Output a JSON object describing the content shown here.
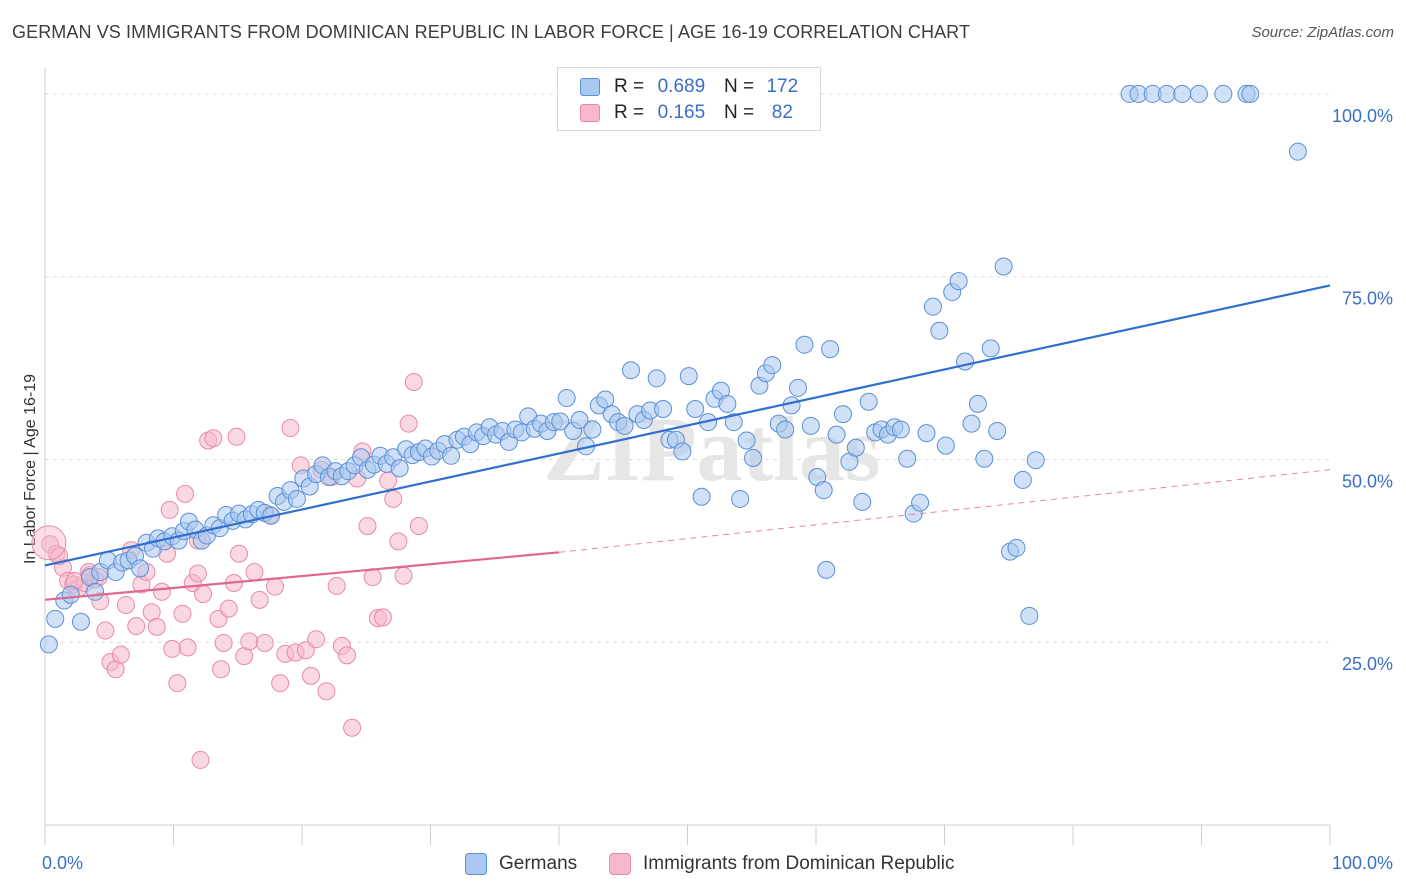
{
  "title": "GERMAN VS IMMIGRANTS FROM DOMINICAN REPUBLIC IN LABOR FORCE | AGE 16-19 CORRELATION CHART",
  "source": "Source: ZipAtlas.com",
  "watermark": "ZIPatlas",
  "colors": {
    "blue_fill": "#a9c8f0",
    "blue_stroke": "#5b8fd6",
    "blue_line": "#2f6fcf",
    "pink_fill": "#f5b8cb",
    "pink_stroke": "#e88aa6",
    "pink_line": "#e0678f",
    "tick_label": "#3a6fc4",
    "grid": "#dddddd"
  },
  "legend": {
    "rows": [
      {
        "r_label": "R =",
        "r_value": "0.689",
        "n_label": "N =",
        "n_value": "172",
        "color": "blue"
      },
      {
        "r_label": "R =",
        "r_value": "0.165",
        "n_label": "N =",
        "n_value": "82",
        "color": "pink"
      }
    ]
  },
  "bottom_legend": [
    "Germans",
    "Immigrants from Dominican Republic"
  ],
  "chart_data": {
    "type": "scatter",
    "title": "GERMAN VS IMMIGRANTS FROM DOMINICAN REPUBLIC IN LABOR FORCE | AGE 16-19 CORRELATION CHART",
    "xlabel": "",
    "ylabel": "In Labor Force | Age 16-19",
    "xlim": [
      0,
      100
    ],
    "ylim": [
      0,
      103
    ],
    "x_tick_labels": [
      "0.0%",
      "100.0%"
    ],
    "y_ticks": [
      25,
      50,
      75,
      100
    ],
    "y_tick_labels": [
      "25.0%",
      "50.0%",
      "75.0%",
      "100.0%"
    ],
    "grid": true,
    "legend_position": "top-center",
    "series": [
      {
        "name": "Germans",
        "color": "blue",
        "trendline": {
          "x": [
            0,
            100
          ],
          "y": [
            35.5,
            73.8
          ],
          "style": "solid"
        },
        "points": [
          [
            0.3,
            24.7
          ],
          [
            0.8,
            28.2
          ],
          [
            1.5,
            30.7
          ],
          [
            2,
            31.5
          ],
          [
            2.8,
            27.8
          ],
          [
            3.5,
            33.9
          ],
          [
            3.9,
            31.9
          ],
          [
            4.3,
            34.6
          ],
          [
            4.9,
            36.2
          ],
          [
            5.5,
            34.6
          ],
          [
            6,
            35.9
          ],
          [
            6.5,
            36.2
          ],
          [
            7,
            36.8
          ],
          [
            7.4,
            35.1
          ],
          [
            7.9,
            38.6
          ],
          [
            8.4,
            37.8
          ],
          [
            8.8,
            39.2
          ],
          [
            9.3,
            38.8
          ],
          [
            9.9,
            39.5
          ],
          [
            10.4,
            38.9
          ],
          [
            10.8,
            40.2
          ],
          [
            11.2,
            41.5
          ],
          [
            11.7,
            40.4
          ],
          [
            12.2,
            38.9
          ],
          [
            12.6,
            39.6
          ],
          [
            13.1,
            41
          ],
          [
            13.6,
            40.6
          ],
          [
            14.1,
            42.4
          ],
          [
            14.6,
            41.6
          ],
          [
            15.1,
            42.6
          ],
          [
            15.6,
            41.8
          ],
          [
            16.1,
            42.5
          ],
          [
            16.6,
            43.1
          ],
          [
            17.1,
            42.7
          ],
          [
            17.6,
            42.3
          ],
          [
            18.1,
            45
          ],
          [
            18.6,
            44.2
          ],
          [
            19.1,
            45.8
          ],
          [
            19.6,
            44.6
          ],
          [
            20.1,
            47.4
          ],
          [
            20.6,
            46.3
          ],
          [
            21.1,
            48
          ],
          [
            21.6,
            49.2
          ],
          [
            22.1,
            47.6
          ],
          [
            22.6,
            48.4
          ],
          [
            23.1,
            47.7
          ],
          [
            23.6,
            48.4
          ],
          [
            24.1,
            49.2
          ],
          [
            24.6,
            50.3
          ],
          [
            25.1,
            48.6
          ],
          [
            25.6,
            49.3
          ],
          [
            26.1,
            50.5
          ],
          [
            26.6,
            49.4
          ],
          [
            27.1,
            50.3
          ],
          [
            27.6,
            48.8
          ],
          [
            28.1,
            51.4
          ],
          [
            28.6,
            50.6
          ],
          [
            29.1,
            51
          ],
          [
            29.6,
            51.5
          ],
          [
            30.1,
            50.4
          ],
          [
            30.6,
            51.2
          ],
          [
            31.1,
            52.1
          ],
          [
            31.6,
            50.5
          ],
          [
            32.1,
            52.7
          ],
          [
            32.6,
            53.1
          ],
          [
            33.1,
            52.1
          ],
          [
            33.6,
            53.7
          ],
          [
            34.1,
            53.2
          ],
          [
            34.6,
            54.4
          ],
          [
            35.1,
            53.4
          ],
          [
            35.6,
            53.9
          ],
          [
            36.1,
            52.4
          ],
          [
            36.6,
            54.1
          ],
          [
            37.1,
            53.7
          ],
          [
            37.6,
            55.9
          ],
          [
            38.1,
            54.2
          ],
          [
            38.6,
            54.9
          ],
          [
            39.1,
            53.9
          ],
          [
            39.6,
            55.1
          ],
          [
            40.1,
            55.2
          ],
          [
            40.6,
            58.4
          ],
          [
            41.1,
            53.9
          ],
          [
            41.6,
            55.4
          ],
          [
            42.1,
            51.8
          ],
          [
            42.6,
            54.1
          ],
          [
            43.1,
            57.4
          ],
          [
            43.6,
            58.2
          ],
          [
            44.1,
            56.2
          ],
          [
            44.6,
            55.1
          ],
          [
            45.1,
            54.6
          ],
          [
            45.6,
            62.2
          ],
          [
            46.1,
            56.2
          ],
          [
            46.6,
            55.4
          ],
          [
            47.1,
            56.7
          ],
          [
            47.6,
            61.1
          ],
          [
            48.1,
            56.9
          ],
          [
            48.6,
            52.7
          ],
          [
            49.1,
            52.7
          ],
          [
            49.6,
            51.1
          ],
          [
            50.1,
            61.4
          ],
          [
            50.6,
            56.9
          ],
          [
            51.1,
            44.9
          ],
          [
            51.6,
            55.1
          ],
          [
            52.1,
            58.3
          ],
          [
            52.6,
            59.4
          ],
          [
            53.1,
            57.6
          ],
          [
            53.6,
            55.1
          ],
          [
            54.1,
            44.6
          ],
          [
            54.6,
            52.6
          ],
          [
            55.1,
            50.2
          ],
          [
            55.6,
            60.1
          ],
          [
            56.1,
            61.8
          ],
          [
            56.6,
            62.9
          ],
          [
            57.1,
            54.9
          ],
          [
            57.6,
            54.1
          ],
          [
            58.1,
            57.4
          ],
          [
            58.6,
            59.8
          ],
          [
            59.1,
            65.7
          ],
          [
            59.6,
            54.6
          ],
          [
            60.1,
            47.6
          ],
          [
            60.6,
            45.8
          ],
          [
            61.1,
            65.1
          ],
          [
            61.6,
            53.4
          ],
          [
            62.1,
            56.2
          ],
          [
            62.6,
            49.7
          ],
          [
            63.1,
            51.6
          ],
          [
            63.6,
            44.2
          ],
          [
            64.1,
            57.9
          ],
          [
            64.6,
            53.7
          ],
          [
            65.1,
            54.1
          ],
          [
            65.6,
            53.4
          ],
          [
            66.1,
            54.4
          ],
          [
            66.6,
            54.1
          ],
          [
            67.1,
            50.1
          ],
          [
            67.6,
            42.6
          ],
          [
            68.1,
            44.1
          ],
          [
            68.6,
            53.6
          ],
          [
            69.1,
            70.9
          ],
          [
            69.6,
            67.6
          ],
          [
            70.1,
            51.9
          ],
          [
            70.6,
            72.9
          ],
          [
            71.1,
            74.4
          ],
          [
            71.6,
            63.4
          ],
          [
            72.1,
            54.9
          ],
          [
            72.6,
            57.6
          ],
          [
            73.1,
            50.1
          ],
          [
            73.6,
            65.2
          ],
          [
            74.1,
            53.9
          ],
          [
            74.6,
            76.4
          ],
          [
            75.1,
            37.4
          ],
          [
            75.6,
            37.9
          ],
          [
            76.1,
            47.2
          ],
          [
            76.6,
            28.6
          ],
          [
            77.1,
            49.9
          ],
          [
            60.8,
            34.9
          ],
          [
            84.4,
            100
          ],
          [
            85.1,
            100
          ],
          [
            86.2,
            100
          ],
          [
            87.3,
            100
          ],
          [
            88.5,
            100
          ],
          [
            89.8,
            100
          ],
          [
            91.7,
            100
          ],
          [
            93.5,
            100
          ],
          [
            93.8,
            100
          ],
          [
            97.5,
            92.1
          ]
        ]
      },
      {
        "name": "Immigrants from Dominican Republic",
        "color": "pink",
        "trendline": {
          "x": [
            0,
            40
          ],
          "y": [
            30.8,
            37.3
          ],
          "style": "solid",
          "extension": {
            "x": [
              40,
              100
            ],
            "y": [
              37.3,
              48.6
            ],
            "style": "dashed"
          }
        },
        "points": [
          [
            0.4,
            38.4
          ],
          [
            0.9,
            37.1
          ],
          [
            1.4,
            35.2
          ],
          [
            1.8,
            33.4
          ],
          [
            2.2,
            32.9
          ],
          [
            2.6,
            32.4
          ],
          [
            3.1,
            33.1
          ],
          [
            3.5,
            34.2
          ],
          [
            3.9,
            33.6
          ],
          [
            4.3,
            30.6
          ],
          [
            4.7,
            26.6
          ],
          [
            5.1,
            22.3
          ],
          [
            5.5,
            21.3
          ],
          [
            5.9,
            23.3
          ],
          [
            6.3,
            30.1
          ],
          [
            6.7,
            37.6
          ],
          [
            7.1,
            27.2
          ],
          [
            7.5,
            32.9
          ],
          [
            7.9,
            34.6
          ],
          [
            8.3,
            29.1
          ],
          [
            8.7,
            27.1
          ],
          [
            9.1,
            31.9
          ],
          [
            9.5,
            37.1
          ],
          [
            9.9,
            24.1
          ],
          [
            10.3,
            19.4
          ],
          [
            10.7,
            28.9
          ],
          [
            11.1,
            24.3
          ],
          [
            11.5,
            33.1
          ],
          [
            11.9,
            34.4
          ],
          [
            12.3,
            31.6
          ],
          [
            12.7,
            52.6
          ],
          [
            13.1,
            52.9
          ],
          [
            13.5,
            28.2
          ],
          [
            13.9,
            24.9
          ],
          [
            14.3,
            29.6
          ],
          [
            14.7,
            33.1
          ],
          [
            15.1,
            37.1
          ],
          [
            15.5,
            23.1
          ],
          [
            15.9,
            25.1
          ],
          [
            16.3,
            34.6
          ],
          [
            16.7,
            30.8
          ],
          [
            17.1,
            24.9
          ],
          [
            17.5,
            42.4
          ],
          [
            17.9,
            32.6
          ],
          [
            18.3,
            19.4
          ],
          [
            18.7,
            23.4
          ],
          [
            19.1,
            54.3
          ],
          [
            19.5,
            23.6
          ],
          [
            19.9,
            49.2
          ],
          [
            20.3,
            23.9
          ],
          [
            20.7,
            20.4
          ],
          [
            21.1,
            25.4
          ],
          [
            21.5,
            48.6
          ],
          [
            21.9,
            18.3
          ],
          [
            22.3,
            47.6
          ],
          [
            22.7,
            32.7
          ],
          [
            23.1,
            24.5
          ],
          [
            23.5,
            23.2
          ],
          [
            23.9,
            13.3
          ],
          [
            24.3,
            47.4
          ],
          [
            24.7,
            51.1
          ],
          [
            25.1,
            40.9
          ],
          [
            25.5,
            33.9
          ],
          [
            25.9,
            28.3
          ],
          [
            26.3,
            28.4
          ],
          [
            26.7,
            47.1
          ],
          [
            27.1,
            44.6
          ],
          [
            27.5,
            38.8
          ],
          [
            27.9,
            34.1
          ],
          [
            28.3,
            54.9
          ],
          [
            28.7,
            60.6
          ],
          [
            29.1,
            40.9
          ],
          [
            14.9,
            53.1
          ],
          [
            11.9,
            38.9
          ],
          [
            13.7,
            21.3
          ],
          [
            12.1,
            8.9
          ],
          [
            9.7,
            43.1
          ],
          [
            10.9,
            45.3
          ],
          [
            2.3,
            33.4
          ],
          [
            1.1,
            36.8
          ],
          [
            4.2,
            33.9
          ],
          [
            3.4,
            34.6
          ]
        ]
      }
    ]
  }
}
